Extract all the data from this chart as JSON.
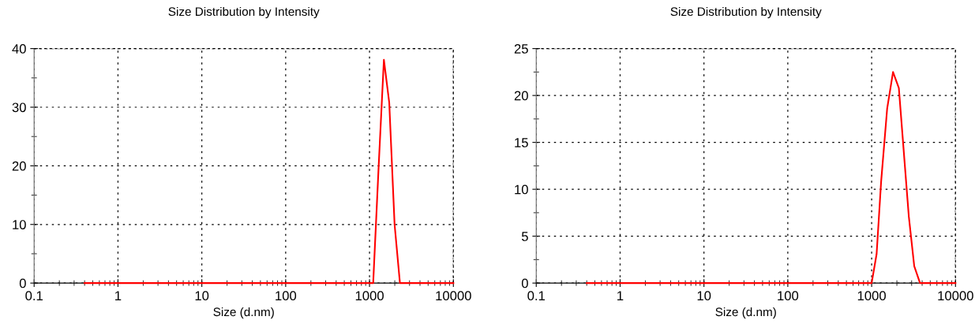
{
  "chart_data": [
    {
      "type": "line",
      "title": "Size Distribution by Intensity",
      "xlabel": "Size (d.nm)",
      "log": "x",
      "grid": true,
      "marker": "none",
      "line_style": "solid",
      "xlim": [
        0.1,
        10000
      ],
      "xticks": [
        0.1,
        1,
        10,
        100,
        1000,
        10000
      ],
      "ylim": [
        0,
        40
      ],
      "yticks": [
        0,
        10,
        20,
        30,
        40
      ],
      "series": [
        {
          "color": "#ff0000",
          "x": [
            0.4,
            1106,
            1281,
            1484,
            1718,
            1990,
            2305,
            10000
          ],
          "values": [
            0,
            0,
            19.5,
            38.1,
            30.8,
            10.0,
            0,
            0
          ]
        }
      ]
    },
    {
      "type": "line",
      "title": "Size Distribution by Intensity",
      "xlabel": "Size (d.nm)",
      "log": "x",
      "grid": true,
      "marker": "none",
      "line_style": "solid",
      "xlim": [
        0.1,
        10000
      ],
      "xticks": [
        0.1,
        1,
        10,
        100,
        1000,
        10000
      ],
      "ylim": [
        0,
        25
      ],
      "yticks": [
        0,
        5,
        10,
        15,
        20,
        25
      ],
      "series": [
        {
          "color": "#ff0000",
          "x": [
            0.4,
            1000,
            1146,
            1297,
            1531,
            1799,
            2110,
            2775,
            3220,
            3775,
            10000
          ],
          "values": [
            0,
            0,
            3.1,
            10.8,
            18.6,
            22.5,
            20.8,
            7.1,
            1.8,
            0,
            0
          ]
        }
      ]
    }
  ]
}
